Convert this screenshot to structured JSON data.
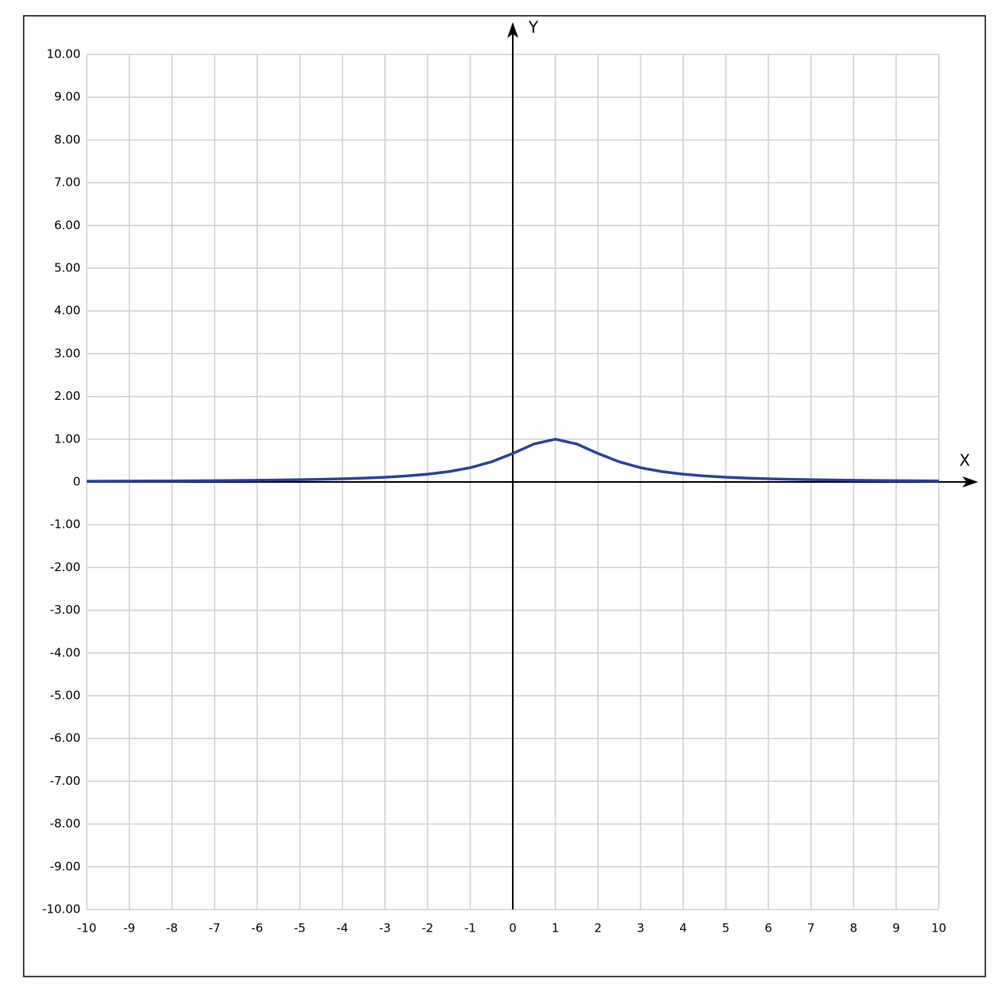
{
  "chart_data": {
    "type": "line",
    "x_label": "X",
    "y_label": "Y",
    "x": [
      -10,
      -9.5,
      -9,
      -8.5,
      -8,
      -7.5,
      -7,
      -6.5,
      -6,
      -5.5,
      -5,
      -4.5,
      -4,
      -3.5,
      -3,
      -2.5,
      -2,
      -1.5,
      -1,
      -0.5,
      0,
      0.5,
      1,
      1.5,
      2,
      2.5,
      3,
      3.5,
      4,
      4.5,
      5,
      5.5,
      6,
      6.5,
      7,
      7.5,
      8,
      8.5,
      9,
      9.5,
      10
    ],
    "series": [
      {
        "color": "#2b4099",
        "values": [
          0.016,
          0.018,
          0.02,
          0.022,
          0.024,
          0.027,
          0.03,
          0.034,
          0.039,
          0.045,
          0.053,
          0.062,
          0.074,
          0.09,
          0.111,
          0.14,
          0.182,
          0.242,
          0.333,
          0.471,
          0.667,
          0.889,
          1,
          0.889,
          0.667,
          0.471,
          0.333,
          0.242,
          0.182,
          0.14,
          0.111,
          0.09,
          0.074,
          0.062,
          0.053,
          0.045,
          0.039,
          0.034,
          0.03,
          0.027,
          0.024
        ]
      }
    ],
    "xlim": [
      -10,
      10
    ],
    "ylim": [
      -10,
      10
    ],
    "xticks": [
      -10,
      -9,
      -8,
      -7,
      -6,
      -5,
      -4,
      -3,
      -2,
      -1,
      0,
      1,
      2,
      3,
      4,
      5,
      6,
      7,
      8,
      9,
      10
    ],
    "yticks": [
      {
        "value": 10,
        "label": "10.00"
      },
      {
        "value": 9,
        "label": "9.00"
      },
      {
        "value": 8,
        "label": "8.00"
      },
      {
        "value": 7,
        "label": "7.00"
      },
      {
        "value": 6,
        "label": "6.00"
      },
      {
        "value": 5,
        "label": "5.00"
      },
      {
        "value": 4,
        "label": "4.00"
      },
      {
        "value": 3,
        "label": "3.00"
      },
      {
        "value": 2,
        "label": "2.00"
      },
      {
        "value": 1,
        "label": "1.00"
      },
      0,
      {
        "value": -1,
        "label": "-1.00"
      },
      {
        "value": -2,
        "label": "-2.00"
      },
      {
        "value": -3,
        "label": "-3.00"
      },
      {
        "value": -4,
        "label": "-4.00"
      },
      {
        "value": -5,
        "label": "-5.00"
      },
      {
        "value": -6,
        "label": "-6.00"
      },
      {
        "value": -7,
        "label": "-7.00"
      },
      {
        "value": -8,
        "label": "-8.00"
      },
      {
        "value": -9,
        "label": "-9.00"
      },
      {
        "value": -10,
        "label": "-10.00"
      }
    ],
    "grid": true
  }
}
